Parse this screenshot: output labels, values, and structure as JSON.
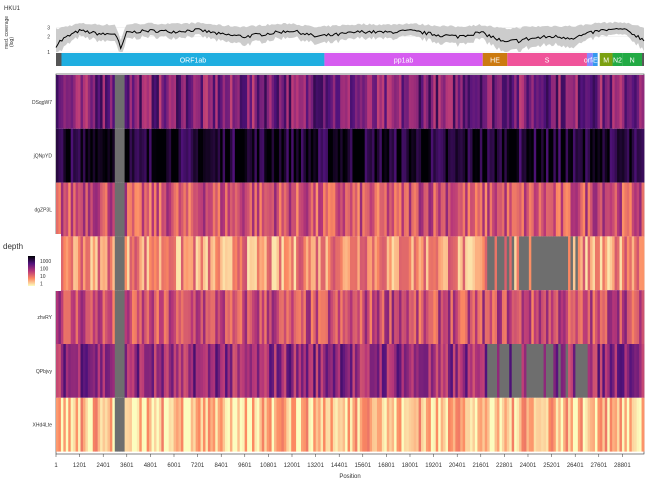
{
  "chart_data": [
    {
      "type": "line",
      "title": "HKU1",
      "ylabel": "med. coverage\n(log)",
      "y_ticks": [
        "1",
        "2",
        "3"
      ],
      "y_scale": "log",
      "series": [
        {
          "name": "median",
          "color": "#000000"
        },
        {
          "name": "range",
          "color": "#cccccc"
        }
      ],
      "x": [
        1,
        1201,
        2401,
        3001,
        3301,
        3601,
        4801,
        6001,
        7201,
        8401,
        9601,
        10801,
        12001,
        13201,
        14401,
        15601,
        16801,
        18001,
        19201,
        20401,
        21601,
        22801,
        24001,
        25201,
        26401,
        27601,
        28801,
        29900
      ],
      "median": [
        1.4,
        2.6,
        2.2,
        2.3,
        1.0,
        2.4,
        2.6,
        2.5,
        2.7,
        2.2,
        2.0,
        2.3,
        2.6,
        2.0,
        2.2,
        2.5,
        2.4,
        2.6,
        2.2,
        2.0,
        2.4,
        1.5,
        1.8,
        2.0,
        1.9,
        2.6,
        2.8,
        1.7
      ],
      "band_high": [
        2.8,
        3.6,
        3.4,
        3.4,
        1.6,
        3.5,
        3.6,
        3.5,
        3.7,
        3.3,
        3.1,
        3.4,
        3.6,
        3.0,
        3.3,
        3.5,
        3.4,
        3.6,
        3.3,
        3.1,
        3.4,
        2.8,
        3.1,
        3.2,
        3.2,
        3.7,
        3.8,
        3.0
      ]
    },
    {
      "type": "bar",
      "genes": [
        {
          "name": "",
          "start": 1,
          "end": 280,
          "color": "#555555"
        },
        {
          "name": "ORF1ab",
          "start": 280,
          "end": 13650,
          "color": "#1faee0"
        },
        {
          "name": "pp1ab",
          "start": 13650,
          "end": 21700,
          "color": "#d65cf0"
        },
        {
          "name": "HE",
          "start": 21700,
          "end": 22950,
          "color": "#cc7a10"
        },
        {
          "name": "S",
          "start": 22950,
          "end": 27000,
          "color": "#f0549a"
        },
        {
          "name": "orf4",
          "start": 27000,
          "end": 27300,
          "color": "#8888ff"
        },
        {
          "name": "E",
          "start": 27300,
          "end": 27550,
          "color": "#3399ee"
        },
        {
          "name": "",
          "start": 27550,
          "end": 27650,
          "color": "#ffffff"
        },
        {
          "name": "M",
          "start": 27650,
          "end": 28300,
          "color": "#7aa010"
        },
        {
          "name": "N2",
          "start": 28300,
          "end": 28800,
          "color": "#22aa44"
        },
        {
          "name": "N",
          "start": 28800,
          "end": 29800,
          "color": "#22aa44"
        },
        {
          "name": "",
          "start": 29800,
          "end": 29900,
          "color": "#555555"
        }
      ]
    },
    {
      "type": "heatmap",
      "xlabel": "Position",
      "x_ticks": [
        "1",
        "1201",
        "2401",
        "3601",
        "4801",
        "6001",
        "7201",
        "8401",
        "9601",
        "10801",
        "12001",
        "13201",
        "14401",
        "15601",
        "16801",
        "18001",
        "19201",
        "20401",
        "21601",
        "22801",
        "24001",
        "25201",
        "26401",
        "27601",
        "28801"
      ],
      "xlim": [
        1,
        29900
      ],
      "samples": [
        "DSqgW7",
        "jQNpYD",
        "dgZP3L",
        "FAvEd",
        "zhvRY",
        "QPbjvy",
        "XHd4Lte"
      ],
      "sample_mean_log10_depth": [
        1.2,
        0.2,
        2.0,
        2.6,
        1.9,
        1.4,
        3.0
      ],
      "legend": {
        "title": "depth",
        "labels": [
          "1000",
          "100",
          "10",
          "1"
        ],
        "position": "left"
      },
      "missing_color": "#6e6e6e",
      "missing_regions": [
        {
          "sample": "all",
          "start": 3050,
          "end": 3450
        },
        {
          "sample": "FAvEd",
          "start": 21800,
          "end": 27200,
          "partial": true
        },
        {
          "sample": "FAvEd",
          "start": 24200,
          "end": 26000
        },
        {
          "sample": "QPbjvy",
          "start": 22000,
          "end": 27000,
          "partial": true
        }
      ]
    }
  ]
}
